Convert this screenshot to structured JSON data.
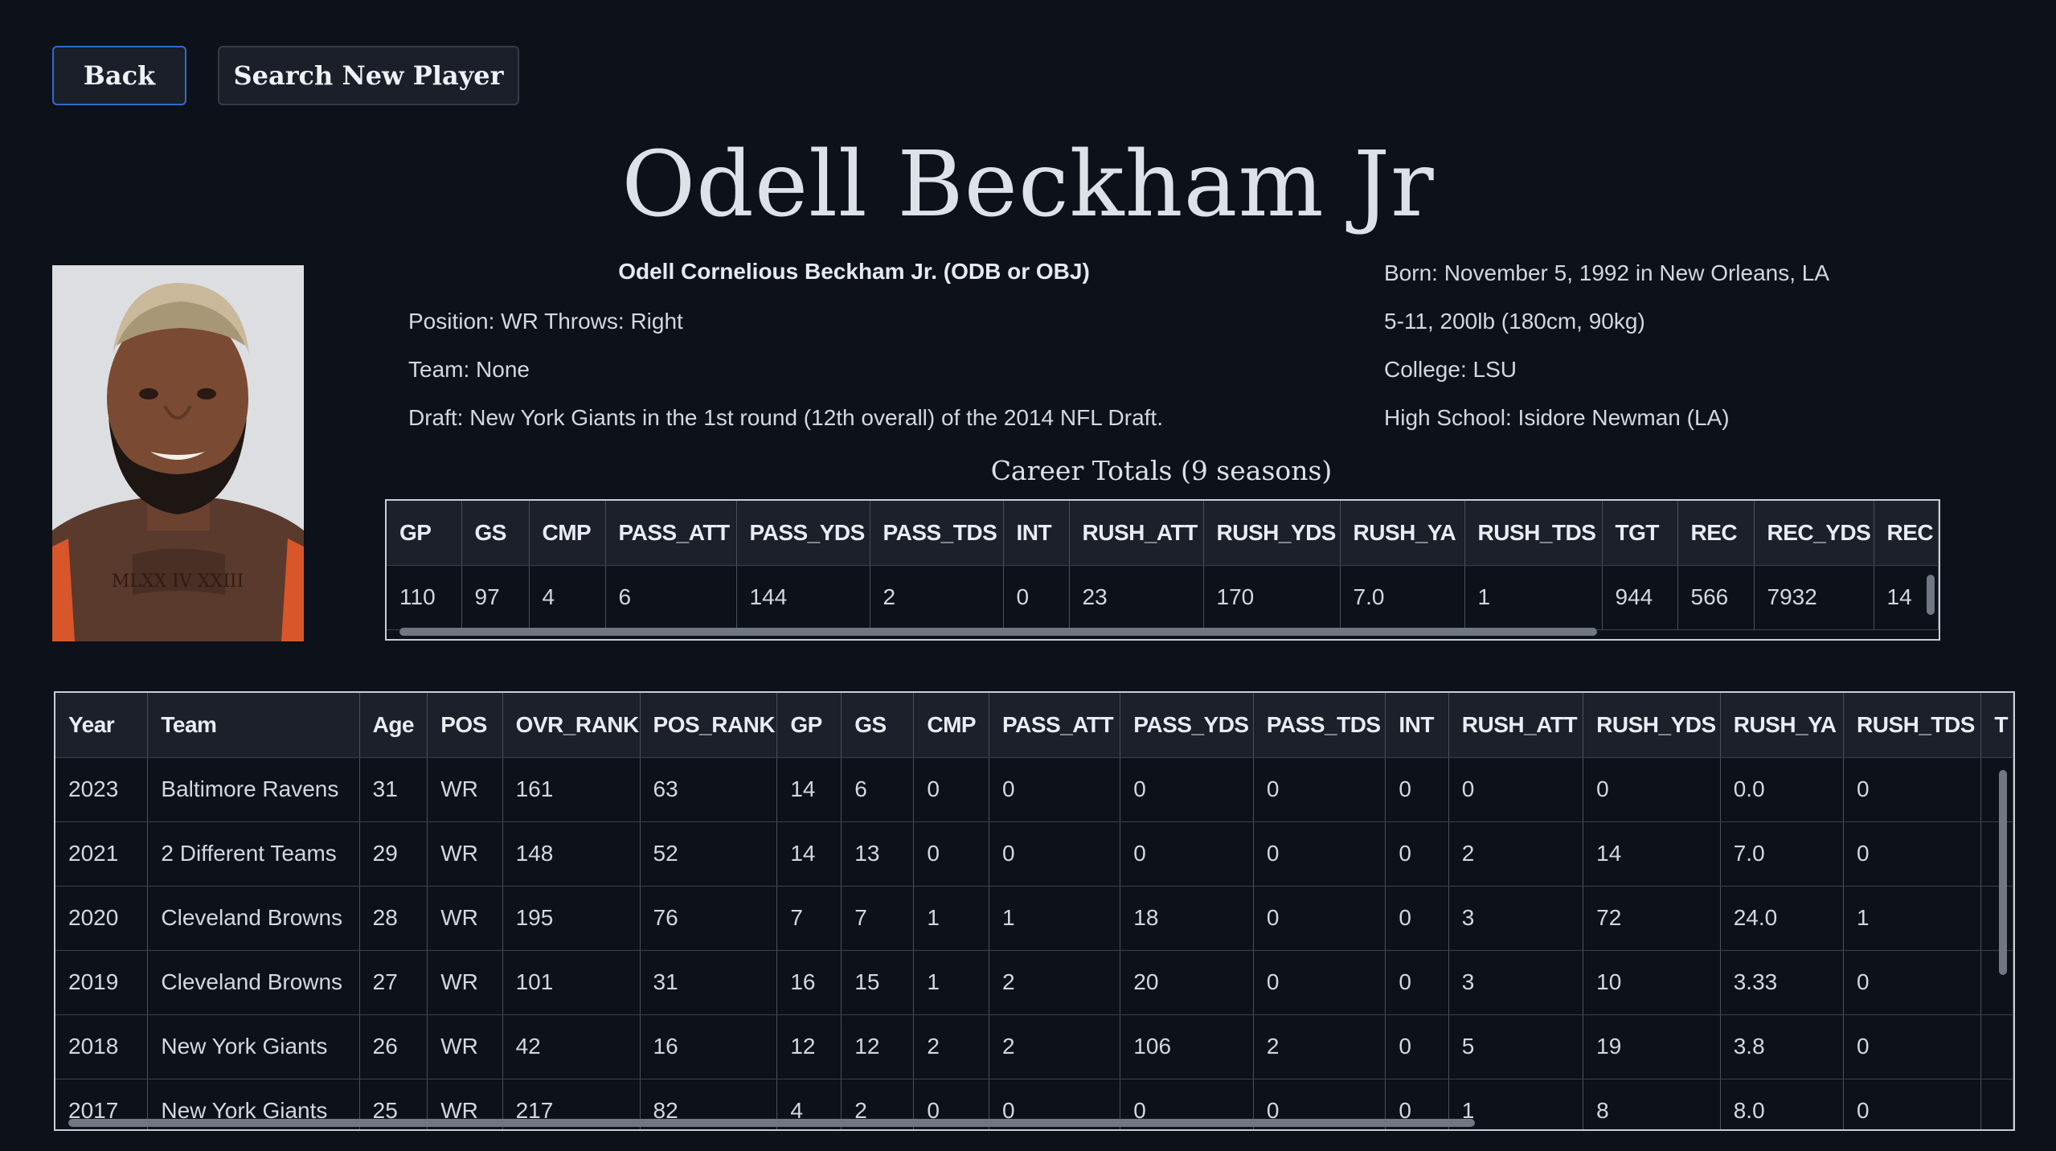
{
  "nav": {
    "back_label": "Back",
    "search_label": "Search New Player"
  },
  "player": {
    "display_name": "Odell Beckham Jr",
    "full_name": "Odell Cornelious Beckham Jr. (ODB or OBJ)",
    "position_line": "Position: WR Throws: Right",
    "team_line": "Team: None",
    "draft_line": "Draft: New York Giants in the 1st round (12th overall) of the 2014 NFL Draft.",
    "born_line": "Born: November 5, 1992 in New Orleans, LA",
    "size_line": "5-11, 200lb (180cm, 90kg)",
    "college_line": "College: LSU",
    "high_school_line": "High School: Isidore Newman (LA)",
    "photo_jersey_text": "MLXX IV XXIII"
  },
  "career": {
    "title": "Career Totals (9 seasons)",
    "columns": [
      "GP",
      "GS",
      "CMP",
      "PASS_ATT",
      "PASS_YDS",
      "PASS_TDS",
      "INT",
      "RUSH_ATT",
      "RUSH_YDS",
      "RUSH_YA",
      "RUSH_TDS",
      "TGT",
      "REC",
      "REC_YDS",
      "REC"
    ],
    "rows": [
      [
        "110",
        "97",
        "4",
        "6",
        "144",
        "2",
        "0",
        "23",
        "170",
        "7.0",
        "1",
        "944",
        "566",
        "7932",
        "14"
      ]
    ]
  },
  "seasons": {
    "columns": [
      "Year",
      "Team",
      "Age",
      "POS",
      "OVR_RANK",
      "POS_RANK",
      "GP",
      "GS",
      "CMP",
      "PASS_ATT",
      "PASS_YDS",
      "PASS_TDS",
      "INT",
      "RUSH_ATT",
      "RUSH_YDS",
      "RUSH_YA",
      "RUSH_TDS",
      "T"
    ],
    "rows": [
      [
        "2023",
        "Baltimore Ravens",
        "31",
        "WR",
        "161",
        "63",
        "14",
        "6",
        "0",
        "0",
        "0",
        "0",
        "0",
        "0",
        "0",
        "0.0",
        "0",
        ""
      ],
      [
        "2021",
        "2 Different Teams",
        "29",
        "WR",
        "148",
        "52",
        "14",
        "13",
        "0",
        "0",
        "0",
        "0",
        "0",
        "2",
        "14",
        "7.0",
        "0",
        ""
      ],
      [
        "2020",
        "Cleveland Browns",
        "28",
        "WR",
        "195",
        "76",
        "7",
        "7",
        "1",
        "1",
        "18",
        "0",
        "0",
        "3",
        "72",
        "24.0",
        "1",
        ""
      ],
      [
        "2019",
        "Cleveland Browns",
        "27",
        "WR",
        "101",
        "31",
        "16",
        "15",
        "1",
        "2",
        "20",
        "0",
        "0",
        "3",
        "10",
        "3.33",
        "0",
        ""
      ],
      [
        "2018",
        "New York Giants",
        "26",
        "WR",
        "42",
        "16",
        "12",
        "12",
        "2",
        "2",
        "106",
        "2",
        "0",
        "5",
        "19",
        "3.8",
        "0",
        ""
      ],
      [
        "2017",
        "New York Giants",
        "25",
        "WR",
        "217",
        "82",
        "4",
        "2",
        "0",
        "0",
        "0",
        "0",
        "0",
        "1",
        "8",
        "8.0",
        "0",
        ""
      ]
    ]
  },
  "colors": {
    "background": "#0d111a",
    "button_bg": "#1a1f29",
    "focus_border": "#2f6cc8",
    "header_bg": "#1b202a",
    "scrollbar": "#707682"
  }
}
